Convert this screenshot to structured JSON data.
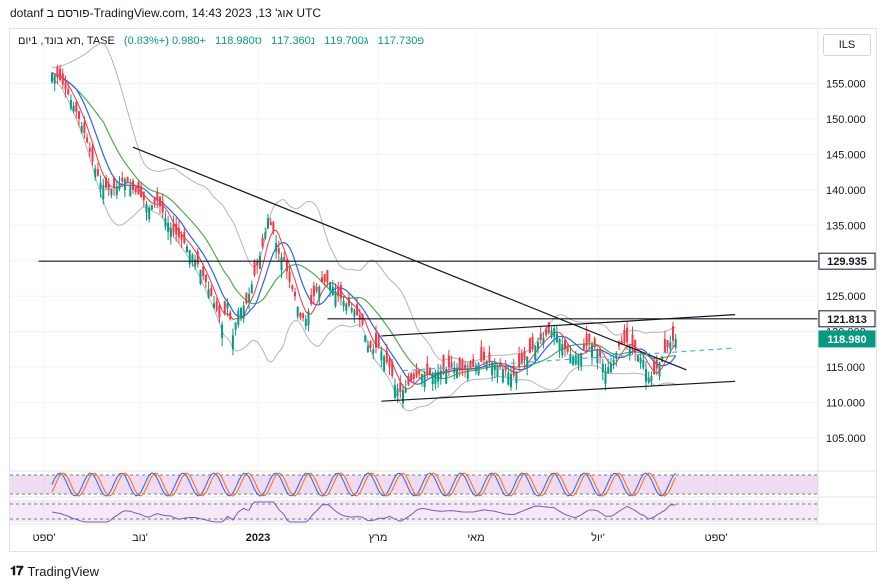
{
  "header": {
    "title": "dotanf פורסם ב-TradingView.com, 14:43 אוג' 13, 2023 UTC"
  },
  "legend": {
    "symbol": "תא בונד, 1יום, TASE",
    "open": "פ117.730",
    "high": "ג119.700",
    "low": "נ117.360",
    "close": "ס118.980",
    "change": "+0.980 (+0.83%)"
  },
  "currency": "ILS",
  "footer": {
    "brand": "TradingView"
  },
  "colors": {
    "up": "#089981",
    "down": "#f23645",
    "ma_fast": "#2962ff",
    "ma_slow": "#4caf50",
    "ma_red": "#f23645",
    "bands": "#b2b5be",
    "rsi": "#7e57c2",
    "stoch_fill": "#e1bee7",
    "dashed_trend": "#5aa9e6"
  },
  "chart_data": {
    "type": "candlestick",
    "x_ticks": [
      "ספט'",
      "נוב'",
      "2023",
      "מרץ",
      "מאי",
      "יול'",
      "ספט'"
    ],
    "y_ticks": [
      "155.000",
      "150.000",
      "145.000",
      "140.000",
      "135.000",
      "130.000",
      "125.000",
      "120.000",
      "115.000",
      "110.000",
      "105.000"
    ],
    "ylim": [
      100.5,
      159
    ],
    "price_labels": [
      {
        "value": 129.935,
        "text": "129.935",
        "style": "dark"
      },
      {
        "value": 121.813,
        "text": "121.813",
        "style": "dark"
      },
      {
        "value": 118.98,
        "text": "118.980",
        "style": "up"
      }
    ],
    "close_path": [
      [
        0,
        156.5
      ],
      [
        3,
        155.5
      ],
      [
        6,
        153.5
      ],
      [
        9,
        151
      ],
      [
        12,
        148
      ],
      [
        15,
        144
      ],
      [
        18,
        141
      ],
      [
        21,
        140
      ],
      [
        24,
        140.5
      ],
      [
        27,
        141.5
      ],
      [
        30,
        140
      ],
      [
        33,
        139
      ],
      [
        36,
        137.5
      ],
      [
        39,
        138.5
      ],
      [
        42,
        136
      ],
      [
        45,
        134
      ],
      [
        48,
        133
      ],
      [
        51,
        131.5
      ],
      [
        54,
        129.5
      ],
      [
        57,
        127
      ],
      [
        60,
        124
      ],
      [
        63,
        121
      ],
      [
        65,
        124
      ],
      [
        67,
        119.5
      ],
      [
        69,
        123
      ],
      [
        72,
        124
      ],
      [
        75,
        128
      ],
      [
        78,
        132
      ],
      [
        80,
        136
      ],
      [
        82,
        134
      ],
      [
        84,
        131
      ],
      [
        86,
        130
      ],
      [
        88,
        127
      ],
      [
        90,
        125
      ],
      [
        92,
        122
      ],
      [
        94,
        121.8
      ],
      [
        97,
        125
      ],
      [
        100,
        127
      ],
      [
        103,
        127
      ],
      [
        106,
        125
      ],
      [
        109,
        124
      ],
      [
        112,
        123
      ],
      [
        115,
        121
      ],
      [
        117,
        118
      ],
      [
        119,
        117.5
      ],
      [
        121,
        118
      ],
      [
        123,
        116.5
      ],
      [
        125,
        115
      ],
      [
        127,
        112.5
      ],
      [
        129,
        111.5
      ],
      [
        131,
        112
      ],
      [
        133,
        113
      ],
      [
        136,
        114
      ],
      [
        140,
        114
      ],
      [
        144,
        114.5
      ],
      [
        148,
        115
      ],
      [
        152,
        114.5
      ],
      [
        156,
        115
      ],
      [
        160,
        116
      ],
      [
        164,
        115.5
      ],
      [
        168,
        114.5
      ],
      [
        171,
        113.8
      ],
      [
        174,
        115.5
      ],
      [
        177,
        117
      ],
      [
        180,
        118.5
      ],
      [
        183,
        119.5
      ],
      [
        186,
        120.5
      ],
      [
        188,
        119
      ],
      [
        190,
        117.5
      ],
      [
        193,
        116.5
      ],
      [
        196,
        117
      ],
      [
        199,
        118.5
      ],
      [
        202,
        117.5
      ],
      [
        205,
        114.5
      ],
      [
        208,
        116
      ],
      [
        210,
        118
      ],
      [
        213,
        118.5
      ],
      [
        216,
        117
      ],
      [
        219,
        116
      ],
      [
        221,
        113.5
      ],
      [
        223,
        114
      ],
      [
        226,
        116.5
      ],
      [
        229,
        118.5
      ],
      [
        231,
        118.98
      ]
    ],
    "n_bars": 232,
    "trendlines": [
      {
        "from": [
          30,
          146
        ],
        "to": [
          235,
          114.6
        ],
        "color": "#131722"
      },
      {
        "from": [
          122,
          119.4
        ],
        "to": [
          253,
          122.4
        ],
        "color": "#131722"
      },
      {
        "from": [
          122,
          110.2
        ],
        "to": [
          253,
          113
        ],
        "color": "#131722"
      },
      {
        "from": [
          130,
          114.5
        ],
        "to": [
          253,
          117.7
        ],
        "color": "#5aa9e6",
        "dashed": true
      }
    ],
    "horizontal_levels": [
      {
        "value": 129.935,
        "from_bar": -5,
        "to_bar": 270
      },
      {
        "value": 121.813,
        "from_bar": 102,
        "to_bar": 270
      }
    ],
    "rsi_pane": {
      "upper": 70,
      "lower": 30
    }
  }
}
